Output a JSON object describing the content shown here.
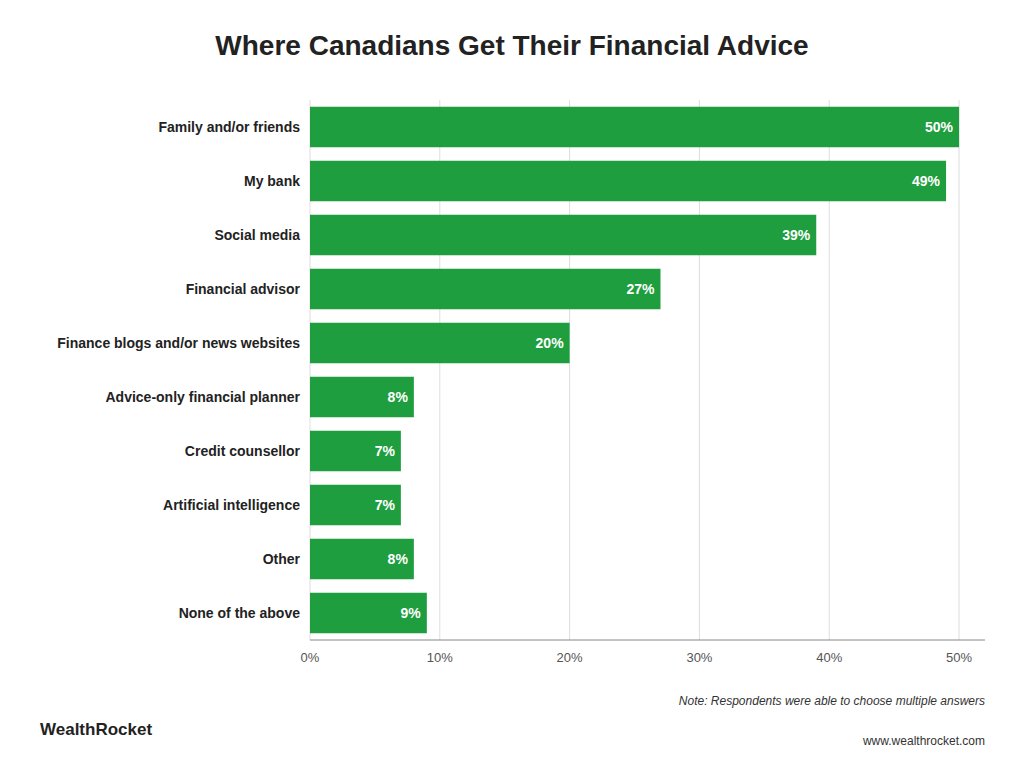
{
  "chart_data": {
    "type": "bar",
    "orientation": "horizontal",
    "title": "Where Canadians Get Their Financial Advice",
    "categories": [
      "None of the above",
      "Other",
      "Artificial intelligence",
      "Credit counsellor",
      "Advice-only financial planner",
      "Finance blogs and/or news websites",
      "Financial advisor",
      "Social media",
      "My bank",
      "Family and/or friends"
    ],
    "values": [
      9,
      8,
      7,
      7,
      8,
      20,
      27,
      39,
      49,
      50
    ],
    "value_labels": [
      "9%",
      "8%",
      "7%",
      "7%",
      "8%",
      "20%",
      "27%",
      "39%",
      "49%",
      "50%"
    ],
    "data_labels": true,
    "color": "#1e9e3e",
    "xlim": [
      0,
      52
    ],
    "xticks": [
      {
        "value": 0,
        "label": "0%"
      },
      {
        "value": 10,
        "label": "10%"
      },
      {
        "value": 20,
        "label": "20%"
      },
      {
        "value": 30,
        "label": "30%"
      },
      {
        "value": 40,
        "label": "40%"
      },
      {
        "value": 50,
        "label": "50%"
      }
    ],
    "grid": true,
    "annotations": [
      "Note: Respondents were able to choose multiple answers",
      "www.wealthrocket.com",
      "WealthRocket"
    ]
  }
}
